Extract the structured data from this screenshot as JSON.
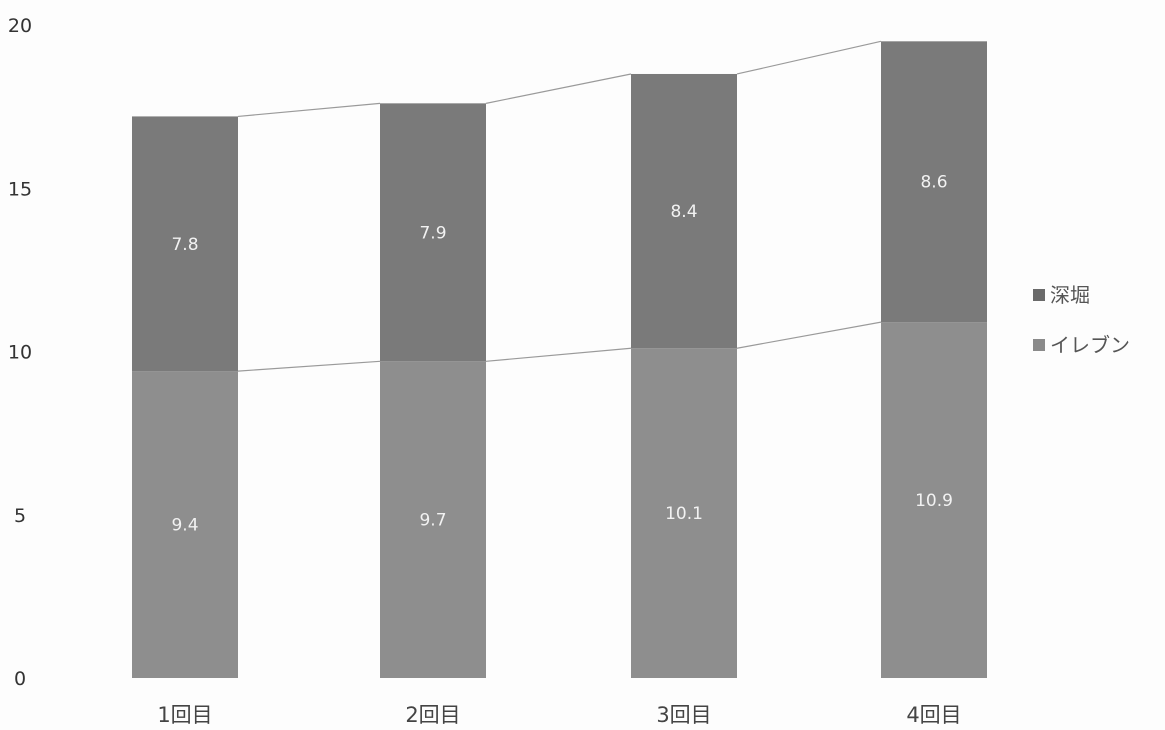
{
  "chart_data": {
    "type": "bar",
    "stacked": true,
    "categories": [
      "1回目",
      "2回目",
      "3回目",
      "4回目"
    ],
    "series": [
      {
        "name": "イレブン",
        "values": [
          9.4,
          9.7,
          10.1,
          10.9
        ],
        "color": "#8e8e8e"
      },
      {
        "name": "深堀",
        "values": [
          7.8,
          7.9,
          8.4,
          8.6
        ],
        "color": "#7a7a7a"
      }
    ],
    "legend": [
      {
        "label": "深堀",
        "color": "#6a6a6a"
      },
      {
        "label": "イレブン",
        "color": "#8a8a8a"
      }
    ],
    "legend_position": "right",
    "ylim": [
      0,
      20
    ],
    "yticks": [
      0,
      5,
      10,
      15,
      20
    ],
    "series_lines": true,
    "grid": false,
    "title": "",
    "xlabel": "",
    "ylabel": ""
  }
}
